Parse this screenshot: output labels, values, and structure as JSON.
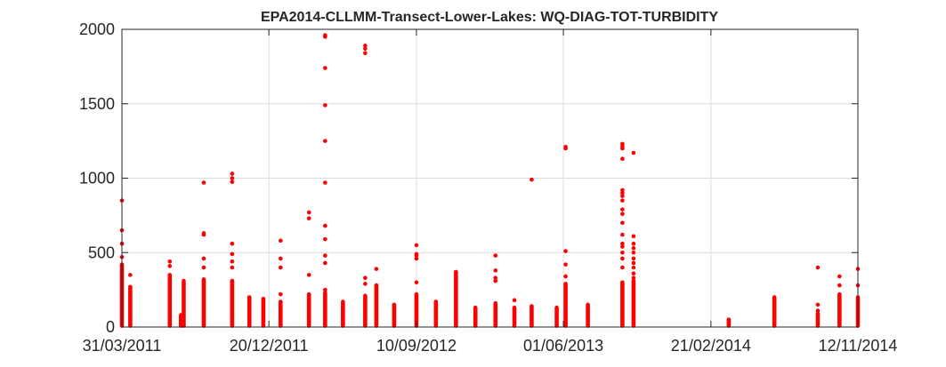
{
  "chart_data": {
    "type": "scatter",
    "title": "EPA2014-CLLMM-Transect-Lower-Lakes: WQ-DIAG-TOT-TURBIDITY",
    "xlabel": "",
    "ylabel": "",
    "x_type": "date",
    "xlim": [
      "2011-03-31",
      "2014-11-12"
    ],
    "ylim": [
      0,
      2000
    ],
    "x_ticks": [
      "31/03/2011",
      "20/12/2011",
      "10/09/2012",
      "01/06/2013",
      "21/02/2014",
      "12/11/2014"
    ],
    "y_ticks": [
      0,
      500,
      1000,
      1500,
      2000
    ],
    "grid": true,
    "marker_color": "#ff0000",
    "clusters": [
      {
        "date": "2011-03-31",
        "max": 420,
        "outliers": [
          850,
          650,
          560,
          470
        ]
      },
      {
        "date": "2011-04-15",
        "max": 270,
        "outliers": [
          350
        ]
      },
      {
        "date": "2011-06-25",
        "max": 350,
        "outliers": [
          440,
          410
        ]
      },
      {
        "date": "2011-07-15",
        "max": 80,
        "outliers": []
      },
      {
        "date": "2011-07-20",
        "max": 300,
        "outliers": [
          310
        ]
      },
      {
        "date": "2011-08-25",
        "max": 320,
        "outliers": [
          970,
          630,
          620,
          460,
          400
        ]
      },
      {
        "date": "2011-10-15",
        "max": 310,
        "outliers": [
          1030,
          1000,
          975,
          560,
          490,
          440,
          400
        ]
      },
      {
        "date": "2011-11-15",
        "max": 200,
        "outliers": []
      },
      {
        "date": "2011-12-10",
        "max": 190,
        "outliers": []
      },
      {
        "date": "2012-01-10",
        "max": 170,
        "outliers": [
          580,
          460,
          400,
          220
        ]
      },
      {
        "date": "2012-03-01",
        "max": 220,
        "outliers": [
          770,
          730,
          350
        ]
      },
      {
        "date": "2012-03-30",
        "max": 230,
        "outliers": [
          1960,
          1950,
          1740,
          1490,
          1250,
          970,
          680,
          590,
          480,
          430,
          250
        ]
      },
      {
        "date": "2012-05-01",
        "max": 170,
        "outliers": []
      },
      {
        "date": "2012-06-10",
        "max": 210,
        "outliers": [
          1890,
          1870,
          1840,
          330,
          290
        ]
      },
      {
        "date": "2012-06-30",
        "max": 280,
        "outliers": [
          390
        ]
      },
      {
        "date": "2012-08-01",
        "max": 150,
        "outliers": []
      },
      {
        "date": "2012-09-10",
        "max": 220,
        "outliers": [
          550,
          490,
          480,
          460,
          300
        ]
      },
      {
        "date": "2012-10-15",
        "max": 170,
        "outliers": []
      },
      {
        "date": "2012-11-20",
        "max": 370,
        "outliers": []
      },
      {
        "date": "2012-12-25",
        "max": 130,
        "outliers": []
      },
      {
        "date": "2013-01-30",
        "max": 160,
        "outliers": [
          480,
          380,
          330,
          310
        ]
      },
      {
        "date": "2013-03-05",
        "max": 130,
        "outliers": [
          180
        ]
      },
      {
        "date": "2013-04-05",
        "max": 140,
        "outliers": [
          990
        ]
      },
      {
        "date": "2013-05-20",
        "max": 130,
        "outliers": []
      },
      {
        "date": "2013-06-05",
        "max": 290,
        "outliers": [
          1210,
          1200,
          510,
          420,
          340
        ]
      },
      {
        "date": "2013-07-15",
        "max": 150,
        "outliers": []
      },
      {
        "date": "2013-09-15",
        "max": 300,
        "outliers": [
          1230,
          1215,
          1200,
          1130,
          920,
          900,
          880,
          850,
          790,
          760,
          700,
          620,
          560,
          540,
          500,
          460,
          400
        ]
      },
      {
        "date": "2013-10-05",
        "max": 310,
        "outliers": [
          1170,
          610,
          560,
          530,
          500,
          460,
          430,
          400,
          360,
          330
        ]
      },
      {
        "date": "2014-03-25",
        "max": 50,
        "outliers": []
      },
      {
        "date": "2014-06-15",
        "max": 200,
        "outliers": []
      },
      {
        "date": "2014-09-01",
        "max": 90,
        "outliers": [
          400,
          150,
          110
        ]
      },
      {
        "date": "2014-10-10",
        "max": 220,
        "outliers": [
          340,
          280
        ]
      },
      {
        "date": "2014-11-12",
        "max": 200,
        "outliers": [
          390,
          280
        ]
      }
    ]
  }
}
